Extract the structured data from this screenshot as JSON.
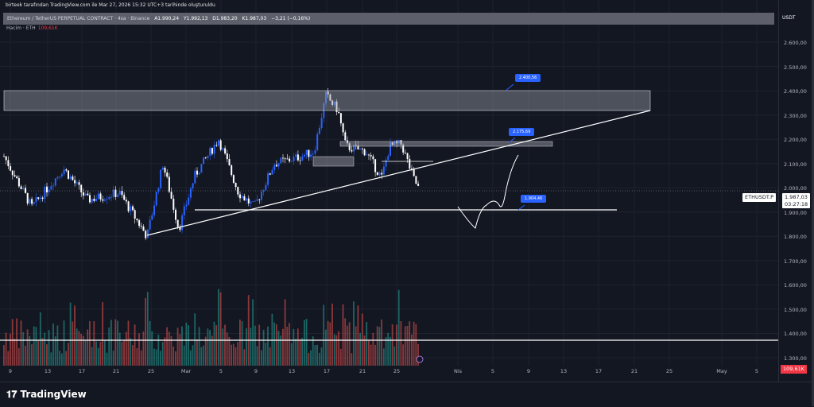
{
  "header": {
    "created_by": "birteek tarafından TradingView.com ile Mar 27, 2026 15:32 UTC+3 tarihinde oluşturuldu"
  },
  "legend": {
    "symbol": "Ethereum / TetherUS PERPETUAL CONTRACT · 4sa · Binance",
    "open": "A1.990,24",
    "high": "Y1.992,13",
    "low": "D1.983,20",
    "close": "K1.987,03",
    "change": "−3,21 (−0,16%)"
  },
  "volume": {
    "label": "Hacim · ETH",
    "value": "109,61K"
  },
  "price_axis": {
    "currency": "USDT",
    "labels": [
      "2.600,00",
      "2.500,00",
      "2.400,00",
      "2.300,00",
      "2.200,00",
      "2.100,00",
      "2.000,00",
      "1.900,00",
      "1.800,00",
      "1.700,00",
      "1.600,00",
      "1.500,00",
      "1.400,00",
      "1.300,00"
    ],
    "current_price": "1.987,03",
    "countdown": "03:27:18",
    "symbol_tag": "ETHUSDT.P",
    "volume_badge": "109,61K"
  },
  "time_axis": {
    "labels": [
      "9",
      "13",
      "17",
      "21",
      "25",
      "Mar",
      "5",
      "9",
      "13",
      "17",
      "21",
      "25",
      "Nis",
      "5",
      "9",
      "13",
      "17",
      "21",
      "25",
      "May",
      "5"
    ]
  },
  "annotations": [
    {
      "text": "2.400,56"
    },
    {
      "text": "2.175,69"
    },
    {
      "text": "1.904,46"
    }
  ],
  "colors": {
    "up": "#2962ff",
    "down": "#ffffff",
    "vol_up": "#26a69a",
    "vol_down": "#ef5350"
  },
  "price_path": [
    2130,
    1920,
    2080,
    1950,
    1980,
    1800,
    2100,
    1830,
    2050,
    2200,
    1980,
    1920,
    2100,
    2120,
    2150,
    2380,
    2320,
    2170,
    2150,
    2040,
    2170,
    2180,
    2040,
    1987
  ],
  "footer": {
    "brand": "TradingView"
  }
}
